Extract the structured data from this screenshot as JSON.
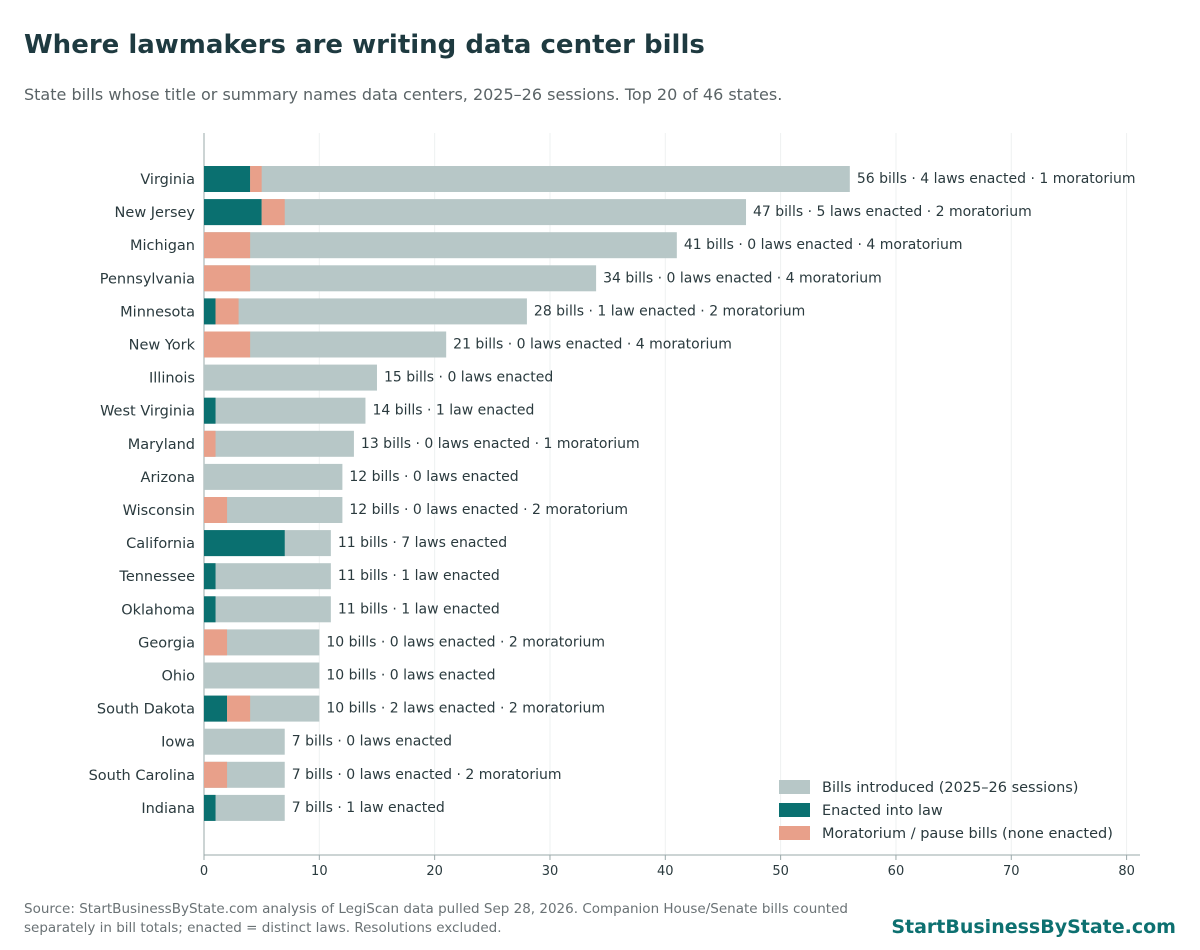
{
  "header": {
    "title": "Where lawmakers are writing data center bills",
    "subtitle": "State bills whose title or summary names data centers, 2025–26 sessions. Top 20 of 46 states."
  },
  "footer": {
    "source": "Source: StartBusinessByState.com analysis of LegiScan data pulled Sep 28, 2026. Companion House/Senate bills counted separately in bill totals; enacted = distinct laws. Resolutions excluded.",
    "brand": "StartBusinessByState.com"
  },
  "colors": {
    "introduced": "#b7c7c7",
    "enacted": "#0a7070",
    "moratorium": "#e8a08a"
  },
  "chart_data": {
    "type": "bar",
    "orientation": "horizontal",
    "stacked_overlay": true,
    "xlim": [
      0,
      80
    ],
    "xticks": [
      0,
      10,
      20,
      30,
      40,
      50,
      60,
      70,
      80
    ],
    "grid": "vertical",
    "legend_position": "bottom-right",
    "legend": [
      "Bills introduced (2025–26 sessions)",
      "Enacted into law",
      "Moratorium / pause bills (none enacted)"
    ],
    "categories": [
      "Virginia",
      "New Jersey",
      "Michigan",
      "Pennsylvania",
      "Minnesota",
      "New York",
      "Illinois",
      "West Virginia",
      "Maryland",
      "Arizona",
      "Wisconsin",
      "California",
      "Tennessee",
      "Oklahoma",
      "Georgia",
      "Ohio",
      "South Dakota",
      "Iowa",
      "South Carolina",
      "Indiana"
    ],
    "series": [
      {
        "name": "Bills introduced (2025–26 sessions)",
        "values": [
          56,
          47,
          41,
          34,
          28,
          21,
          15,
          14,
          13,
          12,
          12,
          11,
          11,
          11,
          10,
          10,
          10,
          7,
          7,
          7
        ]
      },
      {
        "name": "Enacted into law",
        "values": [
          4,
          5,
          0,
          0,
          1,
          0,
          0,
          1,
          0,
          0,
          0,
          7,
          1,
          1,
          0,
          0,
          2,
          0,
          0,
          1
        ]
      },
      {
        "name": "Moratorium / pause bills (none enacted)",
        "values": [
          1,
          2,
          4,
          4,
          2,
          4,
          0,
          0,
          1,
          0,
          2,
          0,
          0,
          0,
          2,
          0,
          2,
          0,
          2,
          0
        ]
      }
    ],
    "data_labels": [
      "56 bills · 4 laws enacted · 1 moratorium",
      "47 bills · 5 laws enacted · 2 moratorium",
      "41 bills · 0 laws enacted · 4 moratorium",
      "34 bills · 0 laws enacted · 4 moratorium",
      "28 bills · 1 law enacted · 2 moratorium",
      "21 bills · 0 laws enacted · 4 moratorium",
      "15 bills · 0 laws enacted",
      "14 bills · 1 law enacted",
      "13 bills · 0 laws enacted · 1 moratorium",
      "12 bills · 0 laws enacted",
      "12 bills · 0 laws enacted · 2 moratorium",
      "11 bills · 7 laws enacted",
      "11 bills · 1 law enacted",
      "11 bills · 1 law enacted",
      "10 bills · 0 laws enacted · 2 moratorium",
      "10 bills · 0 laws enacted",
      "10 bills · 2 laws enacted · 2 moratorium",
      "7 bills · 0 laws enacted",
      "7 bills · 0 laws enacted · 2 moratorium",
      "7 bills · 1 law enacted"
    ]
  }
}
